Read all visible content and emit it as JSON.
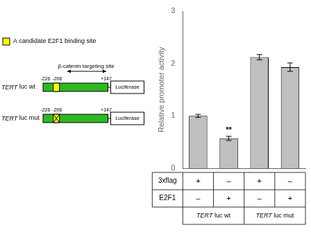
{
  "chart_data": {
    "type": "bar",
    "ylabel": "Relative promoter activity",
    "categories": [
      null,
      null,
      null,
      null
    ],
    "values": [
      1.0,
      0.57,
      2.12,
      1.93
    ],
    "errors": [
      0.03,
      0.04,
      0.05,
      0.08
    ],
    "color": "#bfbfbf",
    "ylim": [
      0,
      3
    ],
    "yticks": [
      0,
      1,
      2,
      3
    ],
    "grid": false,
    "tick_labels": "y",
    "annotations": {
      "bar_label": {
        "text": "**",
        "bar": 1
      },
      "table": {
        "rows": [
          [
            "3xflag",
            "+",
            "–",
            "+",
            "–"
          ],
          [
            "E2F1",
            "–",
            "+",
            "–",
            "+"
          ]
        ],
        "columns": [
          "TERT luc wt",
          "TERT luc mut"
        ]
      },
      "diagram": {
        "key": {
          "text": "A candidate E2F1 binding site",
          "color": "#ffff00"
        },
        "site": "β-catenin targeting site",
        "positions": [
          "-226",
          "-206",
          "+147"
        ],
        "constructs": [
          "TERT luc wt",
          "TERT luc mut"
        ],
        "reporter": "Luciferase",
        "color": "#2db824"
      }
    }
  }
}
